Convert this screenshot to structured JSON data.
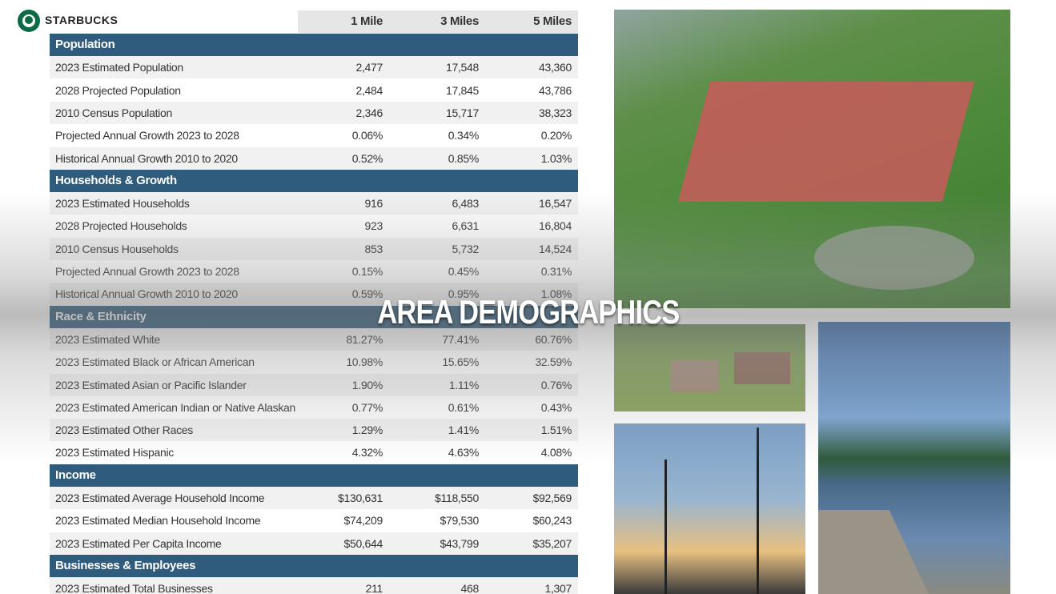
{
  "header": {
    "brand": "STARBUCKS",
    "columns": [
      "1 Mile",
      "3 Miles",
      "5 Miles"
    ]
  },
  "overlay_title": "AREA DEMOGRAPHICS",
  "sections": [
    {
      "title": "Population",
      "rows": [
        [
          "2023 Estimated Population",
          "2,477",
          "17,548",
          "43,360"
        ],
        [
          "2028 Projected Population",
          "2,484",
          "17,845",
          "43,786"
        ],
        [
          "2010 Census Population",
          "2,346",
          "15,717",
          "38,323"
        ],
        [
          "Projected Annual Growth 2023 to 2028",
          "0.06%",
          "0.34%",
          "0.20%"
        ],
        [
          "Historical Annual Growth 2010 to 2020",
          "0.52%",
          "0.85%",
          "1.03%"
        ]
      ]
    },
    {
      "title": "Households & Growth",
      "rows": [
        [
          "2023 Estimated Households",
          "916",
          "6,483",
          "16,547"
        ],
        [
          "2028 Projected Households",
          "923",
          "6,631",
          "16,804"
        ],
        [
          "2010 Census Households",
          "853",
          "5,732",
          "14,524"
        ],
        [
          "Projected Annual Growth 2023 to 2028",
          "0.15%",
          "0.45%",
          "0.31%"
        ],
        [
          "Historical Annual Growth 2010 to 2020",
          "0.59%",
          "0.95%",
          "1.08%"
        ]
      ]
    },
    {
      "title": "Race & Ethnicity",
      "rows": [
        [
          "2023 Estimated White",
          "81.27%",
          "77.41%",
          "60.76%"
        ],
        [
          "2023 Estimated Black or African American",
          "10.98%",
          "15.65%",
          "32.59%"
        ],
        [
          "2023 Estimated Asian or Pacific Islander",
          "1.90%",
          "1.11%",
          "0.76%"
        ],
        [
          "2023 Estimated American Indian or Native Alaskan",
          "0.77%",
          "0.61%",
          "0.43%"
        ],
        [
          "2023 Estimated Other Races",
          "1.29%",
          "1.41%",
          "1.51%"
        ],
        [
          "2023 Estimated Hispanic",
          "4.32%",
          "4.63%",
          "4.08%"
        ]
      ]
    },
    {
      "title": "Income",
      "rows": [
        [
          "2023 Estimated Average Household Income",
          "$130,631",
          "$118,550",
          "$92,569"
        ],
        [
          "2023 Estimated Median Household Income",
          "$74,209",
          "$79,530",
          "$60,243"
        ],
        [
          "2023 Estimated Per Capita Income",
          "$50,644",
          "$43,799",
          "$35,207"
        ]
      ]
    },
    {
      "title": "Businesses & Employees",
      "rows": [
        [
          "2023 Estimated Total Businesses",
          "211",
          "468",
          "1,307"
        ]
      ]
    }
  ]
}
